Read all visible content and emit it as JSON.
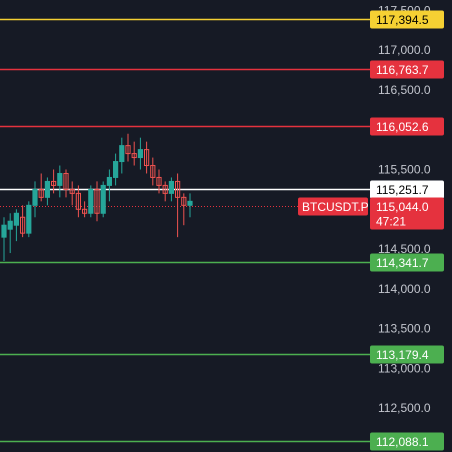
{
  "chart_data": {
    "type": "candlestick",
    "symbol": "BTCUSDT.P",
    "countdown": "47:21",
    "y_range": [
      111950,
      117630
    ],
    "axis_ticks": [
      "117,500.0",
      "117,000.0",
      "116,500.0",
      "115,500.0",
      "114,500.0",
      "114,000.0",
      "113,500.0",
      "113,000.0",
      "112,500.0"
    ],
    "axis_tick_values": [
      117500,
      117000,
      116500,
      115500,
      114500,
      114000,
      113500,
      113000,
      112500
    ],
    "current_price": {
      "value": 115044.0,
      "label": "115,044.0"
    },
    "horizontal_lines": [
      {
        "value": 117394.5,
        "label": "117,394.5",
        "color": "#f5d033",
        "label_color": "#000000"
      },
      {
        "value": 116763.7,
        "label": "116,763.7",
        "color": "#e5323e",
        "label_color": "#ffffff"
      },
      {
        "value": 116052.6,
        "label": "116,052.6",
        "color": "#e5323e",
        "label_color": "#ffffff"
      },
      {
        "value": 115251.7,
        "label": "115,251.7",
        "color": "#ffffff",
        "label_color": "#000000"
      },
      {
        "value": 114341.7,
        "label": "114,341.7",
        "color": "#4caf50",
        "label_color": "#ffffff"
      },
      {
        "value": 113179.4,
        "label": "113,179.4",
        "color": "#4caf50",
        "label_color": "#ffffff"
      },
      {
        "value": 112088.1,
        "label": "112,088.1",
        "color": "#4caf50",
        "label_color": "#ffffff"
      }
    ],
    "candles": [
      {
        "o": 114650,
        "h": 114900,
        "l": 114350,
        "c": 114800
      },
      {
        "o": 114750,
        "h": 114950,
        "l": 114450,
        "c": 114850
      },
      {
        "o": 114800,
        "h": 115000,
        "l": 114600,
        "c": 114950
      },
      {
        "o": 114900,
        "h": 115050,
        "l": 114650,
        "c": 114700
      },
      {
        "o": 114700,
        "h": 115100,
        "l": 114650,
        "c": 115050
      },
      {
        "o": 115050,
        "h": 115350,
        "l": 114900,
        "c": 115250
      },
      {
        "o": 115250,
        "h": 115450,
        "l": 115100,
        "c": 115150
      },
      {
        "o": 115150,
        "h": 115400,
        "l": 115050,
        "c": 115350
      },
      {
        "o": 115350,
        "h": 115500,
        "l": 115200,
        "c": 115300
      },
      {
        "o": 115300,
        "h": 115550,
        "l": 115150,
        "c": 115450
      },
      {
        "o": 115450,
        "h": 115500,
        "l": 115150,
        "c": 115250
      },
      {
        "o": 115250,
        "h": 115350,
        "l": 115050,
        "c": 115200
      },
      {
        "o": 115200,
        "h": 115300,
        "l": 114900,
        "c": 115000
      },
      {
        "o": 115000,
        "h": 115100,
        "l": 114900,
        "c": 114950
      },
      {
        "o": 114950,
        "h": 115300,
        "l": 114900,
        "c": 115250
      },
      {
        "o": 115250,
        "h": 115350,
        "l": 114850,
        "c": 114950
      },
      {
        "o": 114950,
        "h": 115350,
        "l": 114900,
        "c": 115300
      },
      {
        "o": 115300,
        "h": 115500,
        "l": 115100,
        "c": 115400
      },
      {
        "o": 115400,
        "h": 115700,
        "l": 115300,
        "c": 115600
      },
      {
        "o": 115600,
        "h": 115900,
        "l": 115450,
        "c": 115800
      },
      {
        "o": 115800,
        "h": 115950,
        "l": 115600,
        "c": 115700
      },
      {
        "o": 115700,
        "h": 115850,
        "l": 115550,
        "c": 115650
      },
      {
        "o": 115650,
        "h": 115900,
        "l": 115500,
        "c": 115750
      },
      {
        "o": 115750,
        "h": 115850,
        "l": 115450,
        "c": 115550
      },
      {
        "o": 115550,
        "h": 115650,
        "l": 115300,
        "c": 115400
      },
      {
        "o": 115400,
        "h": 115500,
        "l": 115200,
        "c": 115300
      },
      {
        "o": 115300,
        "h": 115350,
        "l": 115100,
        "c": 115200
      },
      {
        "o": 115200,
        "h": 115400,
        "l": 115100,
        "c": 115350
      },
      {
        "o": 115350,
        "h": 115450,
        "l": 114650,
        "c": 115150
      },
      {
        "o": 115150,
        "h": 115200,
        "l": 114800,
        "c": 115050
      },
      {
        "o": 115050,
        "h": 115200,
        "l": 114900,
        "c": 115100
      }
    ]
  }
}
